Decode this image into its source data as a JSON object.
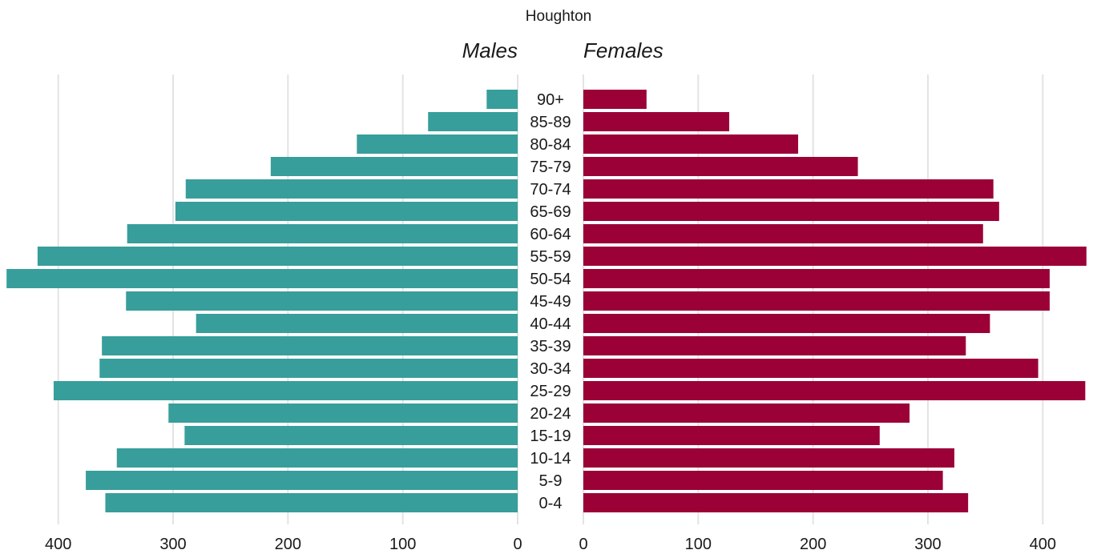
{
  "chart_data": {
    "type": "bar",
    "orientation": "horizontal-pyramid",
    "title": "Houghton",
    "left_label": "Males",
    "right_label": "Females",
    "categories": [
      "90+",
      "85-89",
      "80-84",
      "75-79",
      "70-74",
      "65-69",
      "60-64",
      "55-59",
      "50-54",
      "45-49",
      "40-44",
      "35-39",
      "30-34",
      "25-29",
      "20-24",
      "15-19",
      "10-14",
      "5-9",
      "0-4"
    ],
    "series": [
      {
        "name": "Males",
        "color": "#379E9B",
        "values": [
          27,
          78,
          140,
          215,
          289,
          298,
          340,
          418,
          445,
          341,
          280,
          362,
          364,
          404,
          304,
          290,
          349,
          376,
          359
        ]
      },
      {
        "name": "Females",
        "color": "#9B0036",
        "values": [
          55,
          127,
          187,
          239,
          357,
          362,
          348,
          438,
          406,
          406,
          354,
          333,
          396,
          437,
          284,
          258,
          323,
          313,
          335
        ]
      }
    ],
    "xlim": [
      0,
      430
    ],
    "ticks": [
      0,
      100,
      200,
      300,
      400
    ],
    "tick_labels": [
      "0",
      "100",
      "200",
      "300",
      "400"
    ],
    "grid": true,
    "legend": "none"
  }
}
